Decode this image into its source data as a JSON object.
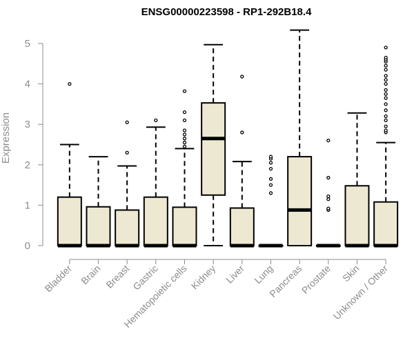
{
  "chart_data": {
    "type": "boxplot",
    "title": "ENSG00000223598 - RP1-292B18.4",
    "xlabel": "",
    "ylabel": "Expression",
    "ylim": [
      0,
      5.4
    ],
    "yticks": [
      0,
      1,
      2,
      3,
      4,
      5
    ],
    "grid": false,
    "colors": {
      "box_fill": "#ede8d1",
      "stroke": "#000000",
      "axis_text": "#8c8c8c"
    },
    "categories": [
      "Bladder",
      "Brain",
      "Breast",
      "Gastric",
      "Hematopoietic cells",
      "Kidney",
      "Liver",
      "Lung",
      "Pancreas",
      "Prostate",
      "Skin",
      "Unknown / Other"
    ],
    "boxes": [
      {
        "q1": 0,
        "median": 0,
        "q3": 1.2,
        "whisker_low": 0,
        "whisker_high": 2.5,
        "outliers": [
          4.0
        ]
      },
      {
        "q1": 0,
        "median": 0,
        "q3": 0.96,
        "whisker_low": 0,
        "whisker_high": 2.2,
        "outliers": []
      },
      {
        "q1": 0,
        "median": 0,
        "q3": 0.88,
        "whisker_low": 0,
        "whisker_high": 1.97,
        "outliers": [
          2.3,
          3.05
        ]
      },
      {
        "q1": 0,
        "median": 0,
        "q3": 1.2,
        "whisker_low": 0,
        "whisker_high": 2.93,
        "outliers": [
          3.1
        ]
      },
      {
        "q1": 0,
        "median": 0,
        "q3": 0.95,
        "whisker_low": 0,
        "whisker_high": 2.4,
        "outliers": [
          2.45,
          2.55,
          2.65,
          2.75,
          2.85,
          3.1,
          3.3,
          3.82
        ]
      },
      {
        "q1": 1.25,
        "median": 2.65,
        "q3": 3.53,
        "whisker_low": 0,
        "whisker_high": 4.97,
        "outliers": []
      },
      {
        "q1": 0,
        "median": 0,
        "q3": 0.93,
        "whisker_low": 0,
        "whisker_high": 2.08,
        "outliers": [
          2.8,
          4.18
        ]
      },
      {
        "q1": 0,
        "median": 0,
        "q3": 0,
        "whisker_low": 0,
        "whisker_high": 0,
        "outliers": [
          1.3,
          1.5,
          1.65,
          1.9,
          2.05,
          2.15,
          2.2
        ]
      },
      {
        "q1": 0,
        "median": 0.88,
        "q3": 2.2,
        "whisker_low": 0,
        "whisker_high": 5.33,
        "outliers": []
      },
      {
        "q1": 0,
        "median": 0,
        "q3": 0,
        "whisker_low": 0,
        "whisker_high": 0,
        "outliers": [
          0.88,
          0.92,
          1.15,
          1.22,
          1.68,
          2.6
        ]
      },
      {
        "q1": 0,
        "median": 0,
        "q3": 1.48,
        "whisker_low": 0,
        "whisker_high": 3.28,
        "outliers": []
      },
      {
        "q1": 0,
        "median": 0,
        "q3": 1.08,
        "whisker_low": 0,
        "whisker_high": 2.55,
        "outliers": [
          2.8,
          2.85,
          2.95,
          3.1,
          3.2,
          3.35,
          3.5,
          3.65,
          3.75,
          3.85,
          4.0,
          4.1,
          4.2,
          4.35,
          4.45,
          4.55,
          4.6,
          4.65,
          4.9
        ]
      }
    ]
  }
}
